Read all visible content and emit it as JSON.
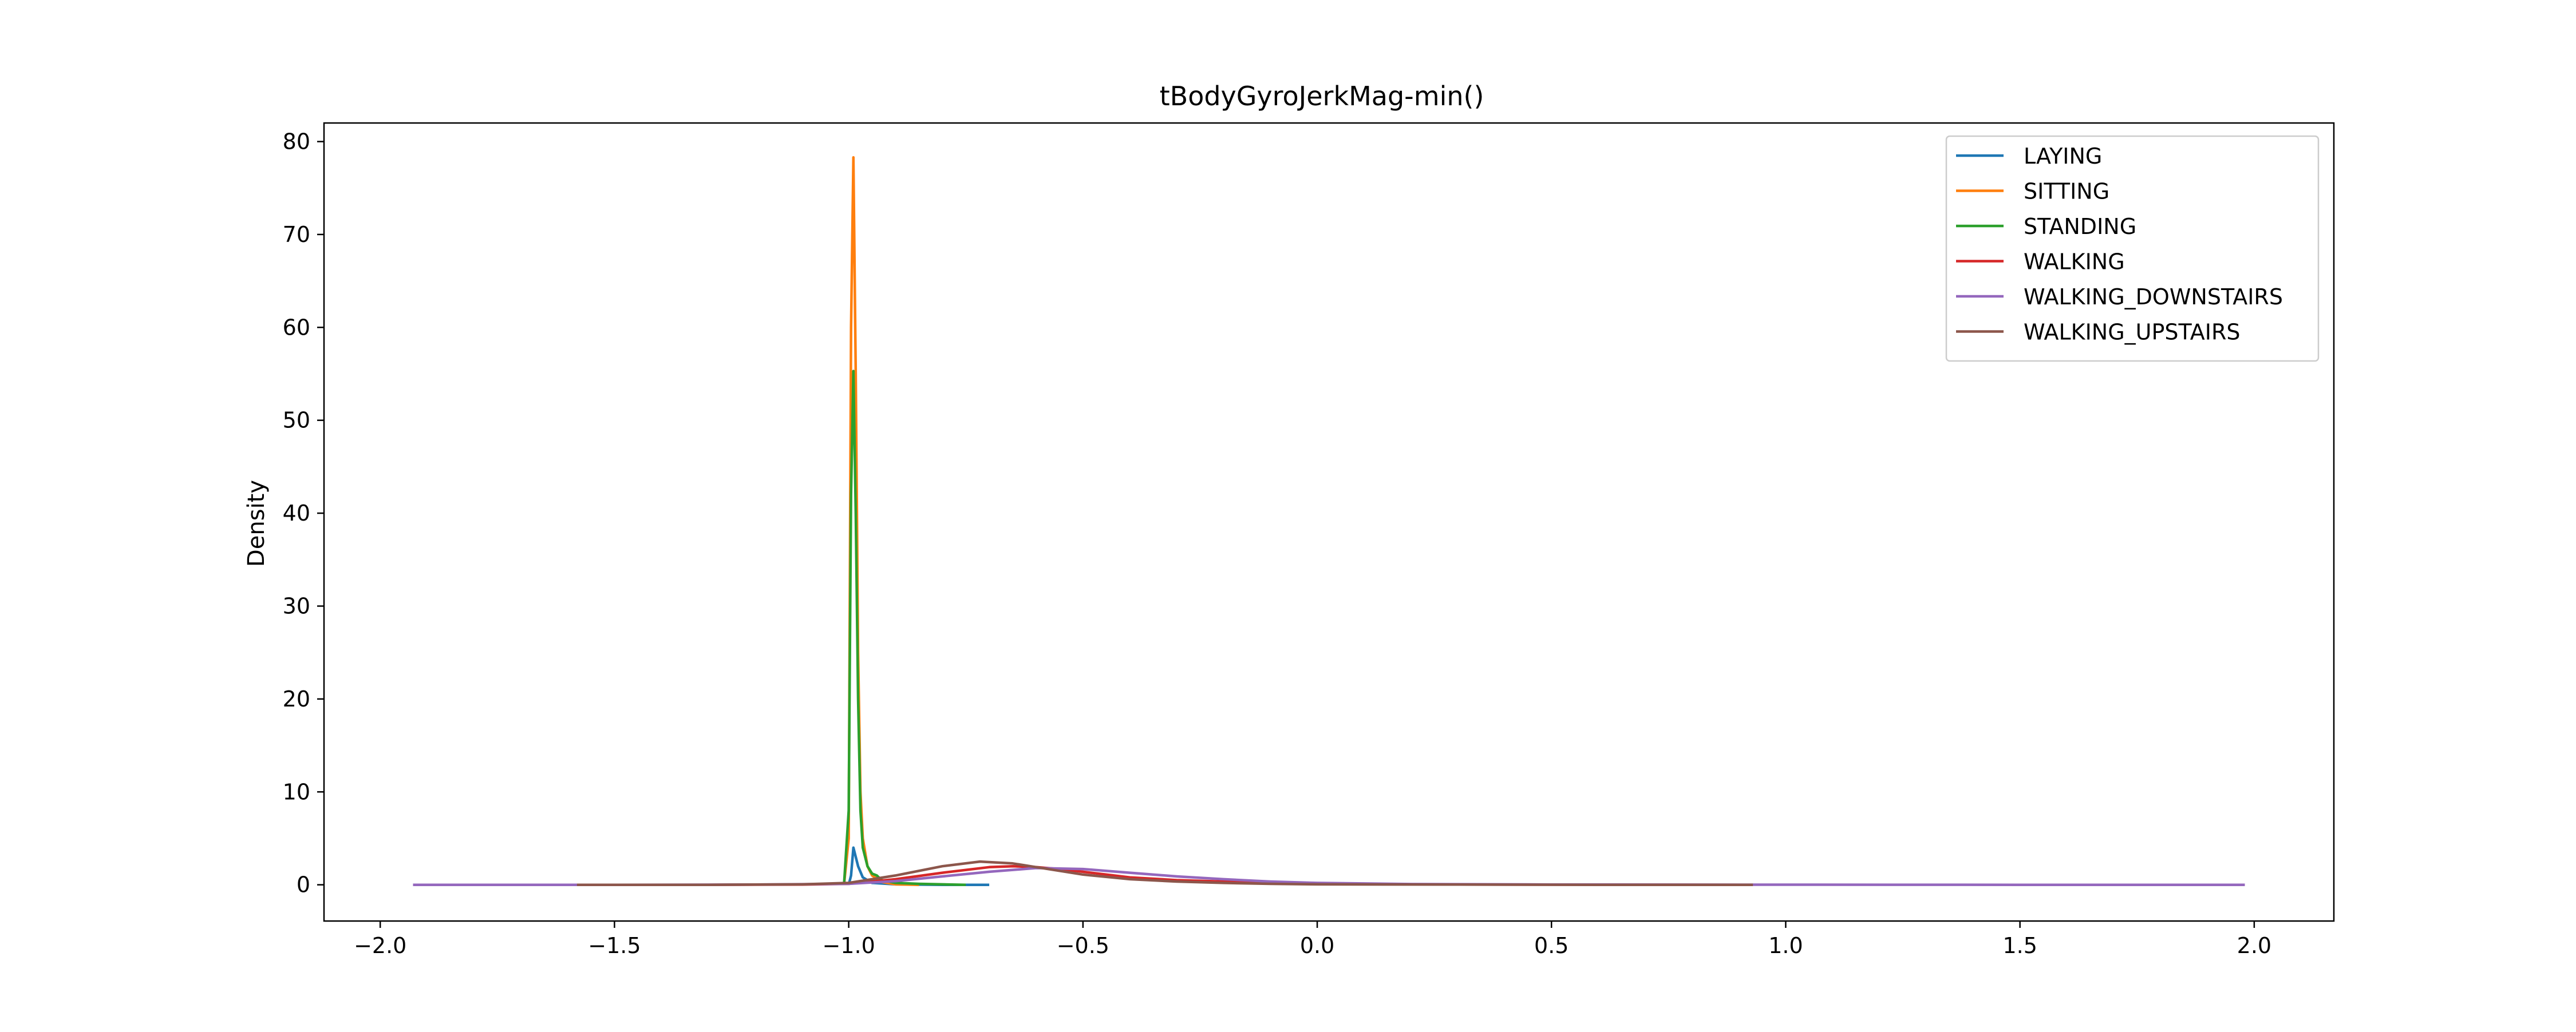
{
  "chart_data": {
    "type": "line",
    "title": "tBodyGyroJerkMag-min()",
    "xlabel": "",
    "ylabel": "Density",
    "xlim": [
      -2.12,
      2.17
    ],
    "ylim": [
      -3.9,
      82.0
    ],
    "xticks": [
      -2.0,
      -1.5,
      -1.0,
      -0.5,
      0.0,
      0.5,
      1.0,
      1.5,
      2.0
    ],
    "xtick_labels": [
      "−2.0",
      "−1.5",
      "−1.0",
      "−0.5",
      "0.0",
      "0.5",
      "1.0",
      "1.5",
      "2.0"
    ],
    "yticks": [
      0,
      10,
      20,
      30,
      40,
      50,
      60,
      70,
      80
    ],
    "ytick_labels": [
      "0",
      "10",
      "20",
      "30",
      "40",
      "50",
      "60",
      "70",
      "80"
    ],
    "grid": false,
    "legend_position": "top-right",
    "series": [
      {
        "name": "LAYING",
        "color": "#1f77b4",
        "x": [
          -1.0,
          -0.995,
          -0.99,
          -0.98,
          -0.97,
          -0.95,
          -0.9,
          -0.8,
          -0.7
        ],
        "y": [
          0,
          1.0,
          4.0,
          2.0,
          0.8,
          0.2,
          0.05,
          0.0,
          0.0
        ]
      },
      {
        "name": "SITTING",
        "color": "#ff7f0e",
        "x": [
          -1.01,
          -1.0,
          -0.995,
          -0.99,
          -0.985,
          -0.98,
          -0.975,
          -0.97,
          -0.96,
          -0.95,
          -0.93,
          -0.9,
          -0.85
        ],
        "y": [
          0,
          5.0,
          60.0,
          78.3,
          55.0,
          25.0,
          10.0,
          5.0,
          2.0,
          1.0,
          0.3,
          0.05,
          0.0
        ]
      },
      {
        "name": "STANDING",
        "color": "#2ca02c",
        "x": [
          -1.01,
          -1.0,
          -0.995,
          -0.99,
          -0.985,
          -0.98,
          -0.975,
          -0.97,
          -0.96,
          -0.95,
          -0.94,
          -0.93,
          -0.9,
          -0.85,
          -0.8,
          -0.75
        ],
        "y": [
          0,
          8.0,
          42.0,
          55.3,
          40.0,
          20.0,
          8.0,
          4.0,
          2.0,
          1.2,
          1.0,
          0.5,
          0.2,
          0.1,
          0.05,
          0.0
        ]
      },
      {
        "name": "WALKING",
        "color": "#d62728",
        "x": [
          -1.6,
          -1.3,
          -1.1,
          -1.0,
          -0.9,
          -0.8,
          -0.7,
          -0.65,
          -0.6,
          -0.55,
          -0.5,
          -0.4,
          -0.3,
          -0.2,
          -0.1,
          0.0,
          0.3,
          0.6,
          0.93
        ],
        "y": [
          0,
          0,
          0.02,
          0.1,
          0.6,
          1.3,
          1.9,
          2.0,
          1.9,
          1.7,
          1.4,
          0.8,
          0.5,
          0.35,
          0.2,
          0.1,
          0.03,
          0.01,
          0.0
        ]
      },
      {
        "name": "WALKING_DOWNSTAIRS",
        "color": "#9467bd",
        "x": [
          -1.93,
          -1.5,
          -1.2,
          -1.0,
          -0.9,
          -0.8,
          -0.7,
          -0.6,
          -0.5,
          -0.4,
          -0.3,
          -0.2,
          -0.1,
          0.0,
          0.2,
          0.5,
          1.0,
          1.5,
          1.98
        ],
        "y": [
          0,
          0,
          0.02,
          0.1,
          0.4,
          0.9,
          1.4,
          1.8,
          1.7,
          1.3,
          0.9,
          0.6,
          0.35,
          0.2,
          0.08,
          0.03,
          0.01,
          0.0,
          0.0
        ]
      },
      {
        "name": "WALKING_UPSTAIRS",
        "color": "#8c564b",
        "x": [
          -1.58,
          -1.3,
          -1.1,
          -1.0,
          -0.9,
          -0.8,
          -0.72,
          -0.65,
          -0.6,
          -0.55,
          -0.5,
          -0.4,
          -0.3,
          -0.2,
          -0.1,
          0.0,
          0.3,
          0.6,
          0.93
        ],
        "y": [
          0,
          0,
          0.05,
          0.2,
          1.0,
          2.0,
          2.5,
          2.3,
          1.9,
          1.5,
          1.1,
          0.6,
          0.35,
          0.2,
          0.1,
          0.05,
          0.02,
          0.0,
          0.0
        ]
      }
    ]
  }
}
